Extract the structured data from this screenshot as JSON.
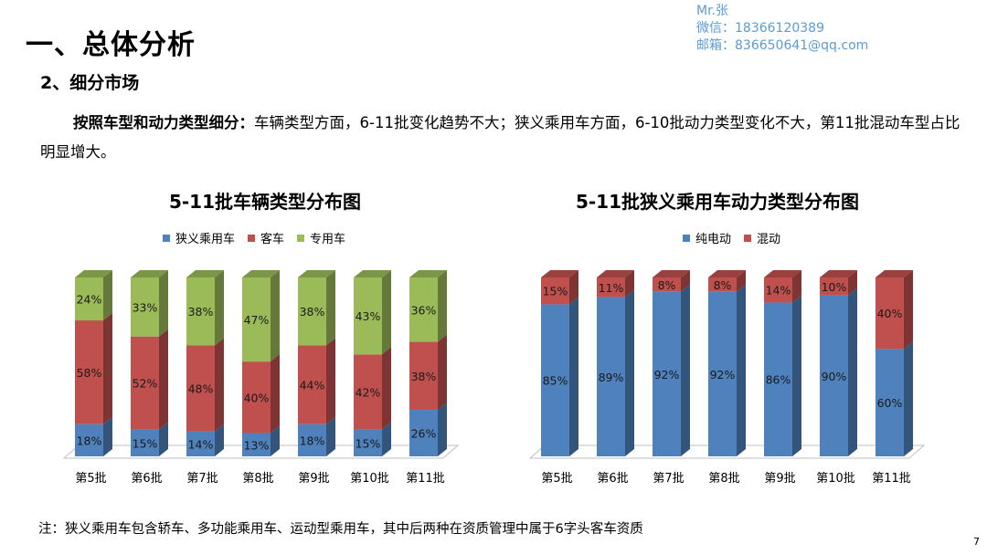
{
  "header": {
    "title": "一、总体分析",
    "subtitle": "2、细分市场"
  },
  "contact": {
    "name": "Mr.张",
    "wechat": "微信：18366120389",
    "email": "邮箱：836650641@qq.com"
  },
  "paragraph": {
    "lead": "按照车型和动力类型细分：",
    "text": "车辆类型方面，6-11批变化趋势不大；狭义乘用车方面，6-10批动力类型变化不大，第11批混动车型占比明显增大。"
  },
  "footnote": "注：狭义乘用车包含轿车、多功能乘用车、运动型乘用车，其中后两种在资质管理中属于6字头客车资质",
  "page_number": "7",
  "chart_data": [
    {
      "type": "bar",
      "stacked": "percent",
      "title": "5-11批车辆类型分布图",
      "legend_position": "top",
      "categories": [
        "第5批",
        "第6批",
        "第7批",
        "第8批",
        "第9批",
        "第10批",
        "第11批"
      ],
      "series": [
        {
          "name": "狭义乘用车",
          "color": "#4f81bd",
          "values": [
            18,
            15,
            14,
            13,
            18,
            15,
            26
          ]
        },
        {
          "name": "客车",
          "color": "#c0504d",
          "values": [
            58,
            52,
            48,
            40,
            44,
            42,
            38
          ]
        },
        {
          "name": "专用车",
          "color": "#9bbb59",
          "values": [
            24,
            33,
            38,
            47,
            38,
            43,
            36
          ]
        }
      ],
      "value_suffix": "%"
    },
    {
      "type": "bar",
      "stacked": "percent",
      "title": "5-11批狭义乘用车动力类型分布图",
      "legend_position": "top",
      "categories": [
        "第5批",
        "第6批",
        "第7批",
        "第8批",
        "第9批",
        "第10批",
        "第11批"
      ],
      "series": [
        {
          "name": "纯电动",
          "color": "#4f81bd",
          "values": [
            85,
            89,
            92,
            92,
            86,
            90,
            60
          ]
        },
        {
          "name": "混动",
          "color": "#c0504d",
          "values": [
            15,
            11,
            8,
            8,
            14,
            10,
            40
          ]
        }
      ],
      "value_suffix": "%"
    }
  ]
}
